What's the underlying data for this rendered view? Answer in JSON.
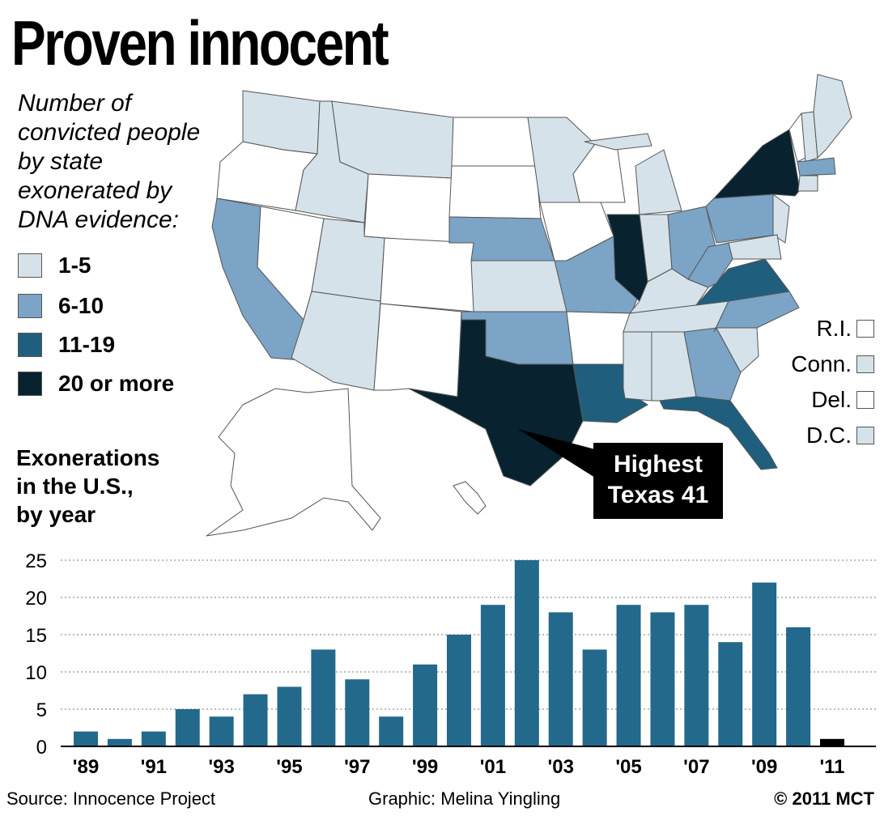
{
  "title": "Proven innocent",
  "subtitle": "Number of convicted people by state exonerated by DNA evidence:",
  "colors": {
    "c1": "#d6e2e9",
    "c2": "#7ba4c6",
    "c3": "#1f5f7d",
    "c4": "#08222f",
    "none": "#ffffff",
    "bar": "#23698b",
    "bar_last": "#000000"
  },
  "legend": [
    {
      "label": "1-5",
      "key": "c1"
    },
    {
      "label": "6-10",
      "key": "c2"
    },
    {
      "label": "11-19",
      "key": "c3"
    },
    {
      "label": "20 or more",
      "key": "c4"
    }
  ],
  "small_states": [
    {
      "label": "R.I.",
      "key": "none"
    },
    {
      "label": "Conn.",
      "key": "c1"
    },
    {
      "label": "Del.",
      "key": "none"
    },
    {
      "label": "D.C.",
      "key": "c1"
    }
  ],
  "states": {
    "WA": "c1",
    "OR": "none",
    "CA": "c2",
    "NV": "none",
    "ID": "c1",
    "MT": "c1",
    "WY": "none",
    "UT": "c1",
    "AZ": "c1",
    "CO": "none",
    "NM": "none",
    "ND": "none",
    "SD": "none",
    "NE": "c2",
    "KS": "c1",
    "OK": "c2",
    "TX": "c4",
    "MN": "c1",
    "IA": "none",
    "MO": "c2",
    "AR": "none",
    "LA": "c3",
    "WI": "none",
    "IL": "c4",
    "MI": "c1",
    "IN": "c1",
    "OH": "c2",
    "KY": "c1",
    "TN": "c1",
    "MS": "c1",
    "AL": "c1",
    "GA": "c2",
    "FL": "c3",
    "SC": "c1",
    "NC": "c2",
    "VA": "c3",
    "WV": "c2",
    "PA": "c2",
    "NY": "c4",
    "NJ": "c1",
    "MD": "c1",
    "VT": "none",
    "NH": "c1",
    "ME": "c1",
    "MA": "c2",
    "CT": "c1",
    "AK": "none",
    "HI": "none"
  },
  "callout": {
    "line1": "Highest",
    "line2": "Texas 41"
  },
  "chart_title": [
    "Exonerations",
    "in the U.S.,",
    "by year"
  ],
  "chart_data": {
    "type": "bar",
    "title": "Exonerations in the U.S., by year",
    "categories": [
      "'89",
      "'90",
      "'91",
      "'92",
      "'93",
      "'94",
      "'95",
      "'96",
      "'97",
      "'98",
      "'99",
      "'00",
      "'01",
      "'02",
      "'03",
      "'04",
      "'05",
      "'06",
      "'07",
      "'08",
      "'09",
      "'10",
      "'11"
    ],
    "values": [
      2,
      1,
      2,
      5,
      4,
      7,
      8,
      13,
      9,
      4,
      11,
      15,
      19,
      25,
      18,
      13,
      19,
      18,
      19,
      14,
      22,
      16,
      1
    ],
    "ylim": [
      0,
      25
    ],
    "yticks": [
      0,
      5,
      10,
      15,
      20,
      25
    ],
    "xtick_labels_shown": [
      "'89",
      "'91",
      "'93",
      "'95",
      "'97",
      "'99",
      "'01",
      "'03",
      "'05",
      "'07",
      "'09",
      "'11"
    ],
    "grid": true,
    "xlabel": "",
    "ylabel": ""
  },
  "footer": {
    "source": "Source: Innocence Project",
    "graphic": "Graphic: Melina Yingling",
    "copyright": "© 2011 MCT"
  }
}
